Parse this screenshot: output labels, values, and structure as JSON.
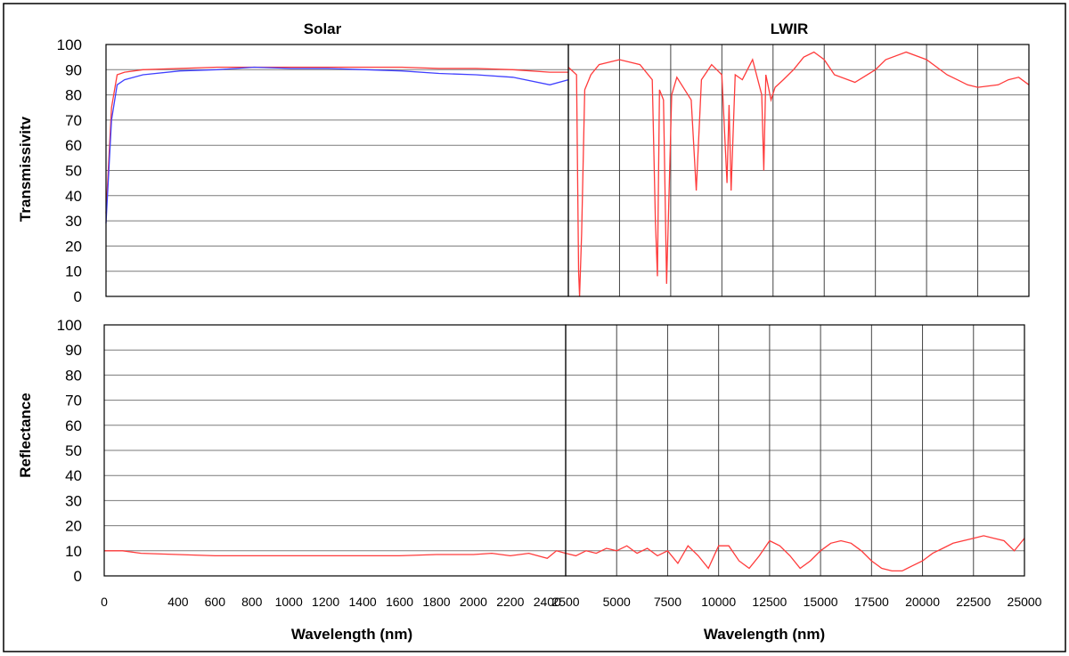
{
  "figure": {
    "titles": {
      "solar": "Solar",
      "lwir": "LWIR"
    },
    "ylabels": {
      "top": "Transmissivitv",
      "bottom": "Reflectance"
    },
    "xlabel": "Wavelength (nm)"
  },
  "colors": {
    "frame": "#000000",
    "grid": "#7a7a7a",
    "red": "#ff3b3b",
    "blue": "#4040ff"
  },
  "chart_data": [
    {
      "id": "solar-transmissivity",
      "type": "line",
      "title": "Solar",
      "ylabel": "Transmissivitv",
      "xlim": [
        0,
        2500
      ],
      "ylim": [
        0,
        100
      ],
      "yticks": [
        0,
        10,
        20,
        30,
        40,
        50,
        60,
        70,
        80,
        90,
        100
      ],
      "xgrid": false,
      "ygrid": true,
      "series": [
        {
          "color": "red",
          "x": [
            0,
            30,
            60,
            100,
            200,
            400,
            600,
            800,
            1000,
            1200,
            1400,
            1600,
            1800,
            2000,
            2200,
            2400,
            2500
          ],
          "y": [
            33,
            75,
            88,
            89,
            90,
            90.5,
            91,
            91,
            91,
            91,
            91,
            91,
            90.5,
            90.5,
            90,
            89,
            89
          ]
        },
        {
          "color": "blue",
          "x": [
            0,
            30,
            60,
            100,
            200,
            400,
            600,
            800,
            1000,
            1200,
            1400,
            1600,
            1800,
            2000,
            2200,
            2400,
            2500
          ],
          "y": [
            29,
            70,
            84,
            86,
            88,
            89.5,
            90,
            91,
            90.5,
            90.5,
            90,
            89.5,
            88.5,
            88,
            87,
            84,
            86
          ]
        }
      ]
    },
    {
      "id": "lwir-transmissivity",
      "type": "line",
      "title": "LWIR",
      "xlim": [
        2500,
        25000
      ],
      "ylim": [
        0,
        100
      ],
      "xgrid": true,
      "ygrid": true,
      "series": [
        {
          "color": "red",
          "x": [
            2500,
            2900,
            3000,
            3050,
            3150,
            3300,
            3600,
            4000,
            5000,
            6000,
            6600,
            6750,
            6850,
            6950,
            7150,
            7300,
            7550,
            7800,
            8500,
            8750,
            9000,
            9500,
            10000,
            10250,
            10350,
            10450,
            10650,
            11000,
            11500,
            11950,
            12050,
            12150,
            12400,
            12600,
            13000,
            13500,
            14000,
            14500,
            15000,
            15500,
            16500,
            17500,
            18000,
            19000,
            20000,
            21000,
            21500,
            22000,
            22500,
            23500,
            24000,
            24500,
            25000
          ],
          "y": [
            91,
            88,
            10,
            0,
            25,
            82,
            88,
            92,
            94,
            92,
            86,
            30,
            8,
            82,
            78,
            5,
            80,
            87,
            78,
            42,
            86,
            92,
            88,
            45,
            76,
            42,
            88,
            86,
            94,
            80,
            50,
            88,
            78,
            83,
            86,
            90,
            95,
            97,
            94,
            88,
            85,
            90,
            94,
            97,
            94,
            88,
            86,
            84,
            83,
            84,
            86,
            87,
            84
          ]
        }
      ]
    },
    {
      "id": "solar-reflectance",
      "type": "line",
      "ylabel": "Reflectance",
      "xlabel": "Wavelength (nm)",
      "xlim": [
        0,
        2500
      ],
      "ylim": [
        0,
        100
      ],
      "yticks": [
        0,
        10,
        20,
        30,
        40,
        50,
        60,
        70,
        80,
        90,
        100
      ],
      "xticks": [
        0,
        400,
        600,
        800,
        1000,
        1200,
        1400,
        1600,
        1800,
        2000,
        2200,
        2400
      ],
      "xgrid": false,
      "ygrid": true,
      "series": [
        {
          "color": "red",
          "x": [
            0,
            100,
            200,
            400,
            600,
            800,
            1000,
            1200,
            1400,
            1600,
            1800,
            2000,
            2100,
            2200,
            2300,
            2400,
            2450,
            2500
          ],
          "y": [
            10,
            10,
            9,
            8.5,
            8,
            8,
            8,
            8,
            8,
            8,
            8.5,
            8.5,
            9,
            8,
            9,
            7,
            10,
            9
          ]
        }
      ]
    },
    {
      "id": "lwir-reflectance",
      "type": "line",
      "xlabel": "Wavelength (nm)",
      "xlim": [
        2500,
        25000
      ],
      "ylim": [
        0,
        100
      ],
      "xticks": [
        2500,
        5000,
        7500,
        10000,
        12500,
        15000,
        17500,
        20000,
        22500,
        25000
      ],
      "xgrid": true,
      "ygrid": true,
      "series": [
        {
          "color": "red",
          "x": [
            2500,
            3000,
            3500,
            4000,
            4500,
            5000,
            5500,
            6000,
            6500,
            7000,
            7500,
            8000,
            8500,
            9000,
            9500,
            10000,
            10500,
            11000,
            11500,
            12000,
            12500,
            13000,
            13500,
            14000,
            14500,
            15000,
            15500,
            16000,
            16500,
            17000,
            17500,
            18000,
            18500,
            19000,
            19500,
            20000,
            20500,
            21000,
            21500,
            22000,
            22500,
            23000,
            23500,
            24000,
            24500,
            25000
          ],
          "y": [
            9,
            8,
            10,
            9,
            11,
            10,
            12,
            9,
            11,
            8,
            10,
            5,
            12,
            8,
            3,
            12,
            12,
            6,
            3,
            8,
            14,
            12,
            8,
            3,
            6,
            10,
            13,
            14,
            13,
            10,
            6,
            3,
            2,
            2,
            4,
            6,
            9,
            11,
            13,
            14,
            15,
            16,
            15,
            14,
            10,
            15
          ]
        }
      ]
    }
  ]
}
